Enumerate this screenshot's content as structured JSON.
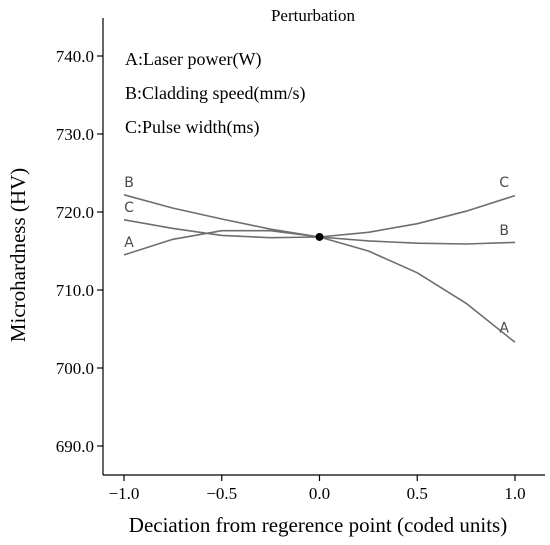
{
  "chart_data": {
    "type": "line",
    "title": "Perturbation",
    "xlabel": "Deciation from regerence point (coded units)",
    "ylabel": "Microhardness (HV)",
    "xlim": [
      -1.0,
      1.0
    ],
    "ylim": [
      690.0,
      740.0
    ],
    "x_ticks": [
      -1.0,
      -0.5,
      0.0,
      0.5,
      1.0
    ],
    "x_tick_labels": [
      "−1.0",
      "−0.5",
      "0.0",
      "0.5",
      "1.0"
    ],
    "y_ticks": [
      690.0,
      700.0,
      710.0,
      720.0,
      730.0,
      740.0
    ],
    "y_tick_labels": [
      "690.0",
      "700.0",
      "710.0",
      "720.0",
      "730.0",
      "740.0"
    ],
    "grid": false,
    "legend_position": "top-left",
    "legend": [
      "A:Laser power(W)",
      "B:Cladding speed(mm/s)",
      "C:Pulse width(ms)"
    ],
    "reference_point": {
      "x": 0.0,
      "y": 716.8
    },
    "series": [
      {
        "name": "A",
        "color": "#6e6e6e",
        "x": [
          -1.0,
          -0.75,
          -0.5,
          -0.25,
          0.0,
          0.25,
          0.5,
          0.75,
          1.0
        ],
        "y": [
          714.5,
          716.5,
          717.6,
          717.6,
          716.8,
          715.0,
          712.2,
          708.3,
          703.3
        ]
      },
      {
        "name": "B",
        "color": "#6e6e6e",
        "x": [
          -1.0,
          -0.75,
          -0.5,
          -0.25,
          0.0,
          0.25,
          0.5,
          0.75,
          1.0
        ],
        "y": [
          722.2,
          720.5,
          719.1,
          717.8,
          716.8,
          716.3,
          716.0,
          715.9,
          716.1
        ]
      },
      {
        "name": "C",
        "color": "#6e6e6e",
        "x": [
          -1.0,
          -0.75,
          -0.5,
          -0.25,
          0.0,
          0.25,
          0.5,
          0.75,
          1.0
        ],
        "y": [
          719.0,
          717.9,
          717.0,
          716.7,
          716.8,
          717.4,
          718.5,
          720.1,
          722.1
        ]
      }
    ],
    "curve_labels": [
      {
        "series": "A",
        "text": "A",
        "at_x": -1.0,
        "at_y": 714.5
      },
      {
        "series": "A",
        "text": "A",
        "at_x": 0.97,
        "at_y": 703.5
      },
      {
        "series": "B",
        "text": "B",
        "at_x": -1.0,
        "at_y": 722.2
      },
      {
        "series": "B",
        "text": "B",
        "at_x": 0.97,
        "at_y": 716.0
      },
      {
        "series": "C",
        "text": "C",
        "at_x": -1.0,
        "at_y": 719.0
      },
      {
        "series": "C",
        "text": "C",
        "at_x": 0.97,
        "at_y": 722.2
      }
    ]
  }
}
